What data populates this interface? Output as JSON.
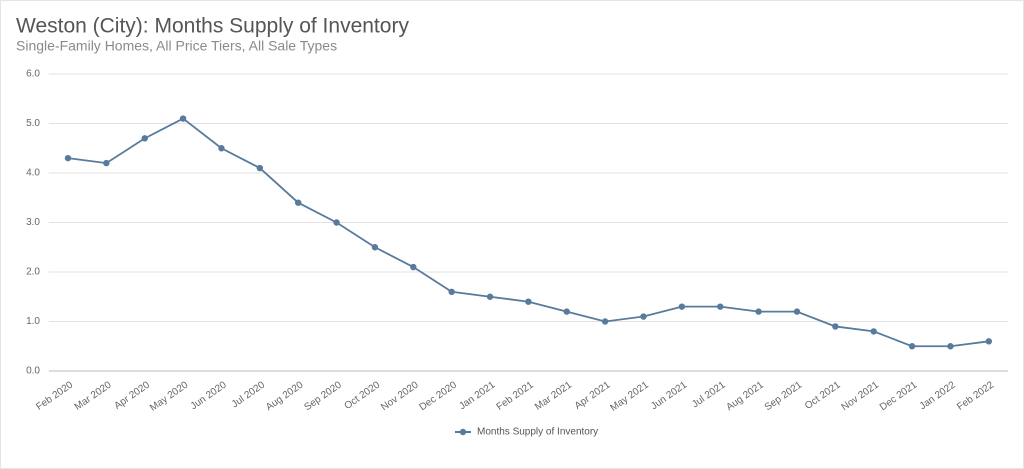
{
  "chart_data": {
    "type": "line",
    "title": "Weston (City): Months Supply of Inventory",
    "subtitle": "Single-Family Homes, All Price Tiers, All Sale Types",
    "categories": [
      "Feb 2020",
      "Mar 2020",
      "Apr 2020",
      "May 2020",
      "Jun 2020",
      "Jul 2020",
      "Aug 2020",
      "Sep 2020",
      "Oct 2020",
      "Nov 2020",
      "Dec 2020",
      "Jan 2021",
      "Feb 2021",
      "Mar 2021",
      "Apr 2021",
      "May 2021",
      "Jun 2021",
      "Jul 2021",
      "Aug 2021",
      "Sep 2021",
      "Oct 2021",
      "Nov 2021",
      "Dec 2021",
      "Jan 2022",
      "Feb 2022"
    ],
    "series": [
      {
        "name": "Months Supply of Inventory",
        "color": "#587b9c",
        "values": [
          4.3,
          4.2,
          4.7,
          5.1,
          4.5,
          4.1,
          3.4,
          3.0,
          2.5,
          2.1,
          1.6,
          1.5,
          1.4,
          1.2,
          1.0,
          1.1,
          1.3,
          1.3,
          1.2,
          1.2,
          0.9,
          0.8,
          0.5,
          0.5,
          0.6
        ]
      }
    ],
    "ylim": [
      0,
      6
    ],
    "yticks": [
      {
        "value": 0,
        "label": "0.0"
      },
      {
        "value": 1,
        "label": "1.0"
      },
      {
        "value": 2,
        "label": "2.0"
      },
      {
        "value": 3,
        "label": "3.0"
      },
      {
        "value": 4,
        "label": "4.0"
      },
      {
        "value": 5,
        "label": "5.0"
      },
      {
        "value": 6,
        "label": "6.0"
      }
    ],
    "grid": true,
    "legend": "bottom"
  }
}
